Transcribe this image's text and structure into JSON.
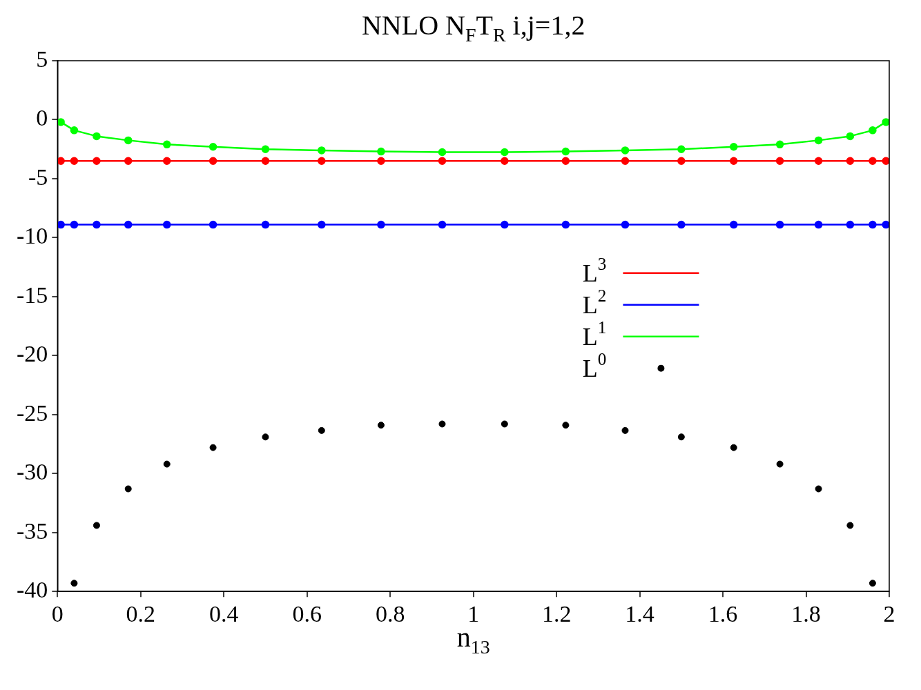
{
  "chart_data": {
    "type": "line",
    "title": "NNLO N$_{F}$T$_{R}$ i,j=1,2",
    "xlabel": "n$_{13}$",
    "xlim": [
      0,
      2
    ],
    "xticks": [
      0,
      0.2,
      0.4,
      0.6,
      0.8,
      1,
      1.2,
      1.4,
      1.6,
      1.8,
      2
    ],
    "ylim": [
      -40,
      5
    ],
    "yticks": [
      -40,
      -35,
      -30,
      -25,
      -20,
      -15,
      -10,
      -5,
      0,
      5
    ],
    "grid": false,
    "legend": "right",
    "marker": "circle",
    "line_style": "solid",
    "series": [
      {
        "name": "L$^{3}$",
        "type": "line",
        "color": "#ff0000",
        "x": [
          0.008,
          0.04,
          0.094,
          0.17,
          0.263,
          0.374,
          0.5,
          0.635,
          0.778,
          0.925,
          1.075,
          1.222,
          1.365,
          1.5,
          1.626,
          1.737,
          1.83,
          1.906,
          1.96,
          1.992
        ],
        "values": [
          -3.5,
          -3.5,
          -3.5,
          -3.5,
          -3.5,
          -3.5,
          -3.5,
          -3.5,
          -3.5,
          -3.5,
          -3.5,
          -3.5,
          -3.5,
          -3.5,
          -3.5,
          -3.5,
          -3.5,
          -3.5,
          -3.5,
          -3.5
        ]
      },
      {
        "name": "L$^{2}$",
        "type": "line",
        "color": "#0000ff",
        "x": [
          0.008,
          0.04,
          0.094,
          0.17,
          0.263,
          0.374,
          0.5,
          0.635,
          0.778,
          0.925,
          1.075,
          1.222,
          1.365,
          1.5,
          1.626,
          1.737,
          1.83,
          1.906,
          1.96,
          1.992
        ],
        "values": [
          -8.9,
          -8.9,
          -8.9,
          -8.9,
          -8.9,
          -8.9,
          -8.9,
          -8.9,
          -8.9,
          -8.9,
          -8.9,
          -8.9,
          -8.9,
          -8.9,
          -8.9,
          -8.9,
          -8.9,
          -8.9,
          -8.9,
          -8.9
        ]
      },
      {
        "name": "L$^{1}$",
        "type": "line",
        "color": "#00ff00",
        "x": [
          0.008,
          0.04,
          0.094,
          0.17,
          0.263,
          0.374,
          0.5,
          0.635,
          0.778,
          0.925,
          1.075,
          1.222,
          1.365,
          1.5,
          1.626,
          1.737,
          1.83,
          1.906,
          1.96,
          1.992
        ],
        "values": [
          -0.2,
          -0.9,
          -1.4,
          -1.75,
          -2.1,
          -2.3,
          -2.5,
          -2.6,
          -2.7,
          -2.75,
          -2.75,
          -2.7,
          -2.6,
          -2.5,
          -2.3,
          -2.1,
          -1.75,
          -1.4,
          -0.9,
          -0.2
        ]
      },
      {
        "name": "L$^{0}$",
        "type": "scatter",
        "color": "#000000",
        "x": [
          0.04,
          0.094,
          0.17,
          0.263,
          0.374,
          0.5,
          0.635,
          0.778,
          0.925,
          1.075,
          1.222,
          1.365,
          1.5,
          1.626,
          1.737,
          1.83,
          1.906,
          1.96
        ],
        "values": [
          -39.3,
          -34.4,
          -31.3,
          -29.2,
          -27.8,
          -26.9,
          -26.35,
          -25.9,
          -25.8,
          -25.8,
          -25.9,
          -26.35,
          -26.9,
          -27.8,
          -29.2,
          -31.3,
          -34.4,
          -39.3
        ]
      }
    ]
  }
}
